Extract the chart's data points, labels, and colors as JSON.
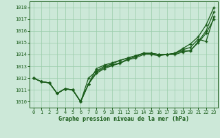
{
  "x": [
    0,
    1,
    2,
    3,
    4,
    5,
    6,
    7,
    8,
    9,
    10,
    11,
    12,
    13,
    14,
    15,
    16,
    17,
    18,
    19,
    20,
    21,
    22,
    23
  ],
  "line1": [
    1012.0,
    1011.7,
    1011.6,
    1010.7,
    1011.1,
    1011.0,
    1010.0,
    1011.5,
    1012.4,
    1012.8,
    1013.05,
    1013.25,
    1013.55,
    1013.7,
    1014.0,
    1014.0,
    1013.9,
    1014.0,
    1014.0,
    1014.2,
    1014.35,
    1015.0,
    1015.8,
    1017.0
  ],
  "line2": [
    1012.0,
    1011.7,
    1011.6,
    1010.7,
    1011.1,
    1011.0,
    1010.0,
    1012.0,
    1012.6,
    1013.0,
    1013.2,
    1013.5,
    1013.7,
    1013.9,
    1014.1,
    1014.1,
    1014.0,
    1014.0,
    1014.1,
    1014.4,
    1014.6,
    1015.3,
    1015.1,
    1017.2
  ],
  "line3": [
    1012.0,
    1011.7,
    1011.6,
    1010.7,
    1011.1,
    1011.0,
    1010.0,
    1011.5,
    1012.8,
    1013.1,
    1013.3,
    1013.5,
    1013.7,
    1013.9,
    1014.1,
    1014.1,
    1014.0,
    1014.0,
    1014.1,
    1014.5,
    1014.9,
    1015.5,
    1016.5,
    1018.0
  ],
  "line4": [
    1012.0,
    1011.7,
    1011.6,
    1010.7,
    1011.1,
    1011.0,
    1010.0,
    1011.5,
    1012.5,
    1012.9,
    1013.1,
    1013.3,
    1013.6,
    1013.8,
    1014.1,
    1014.1,
    1014.0,
    1014.0,
    1014.1,
    1014.3,
    1014.3,
    1015.1,
    1016.0,
    1017.6
  ],
  "ylim": [
    1009.5,
    1018.5
  ],
  "yticks": [
    1010,
    1011,
    1012,
    1013,
    1014,
    1015,
    1016,
    1017,
    1018
  ],
  "xlim": [
    -0.5,
    23.5
  ],
  "bg_color": "#cce8d8",
  "grid_color": "#99ccaa",
  "line_color": "#1a5c1a",
  "xlabel": "Graphe pression niveau de la mer (hPa)"
}
